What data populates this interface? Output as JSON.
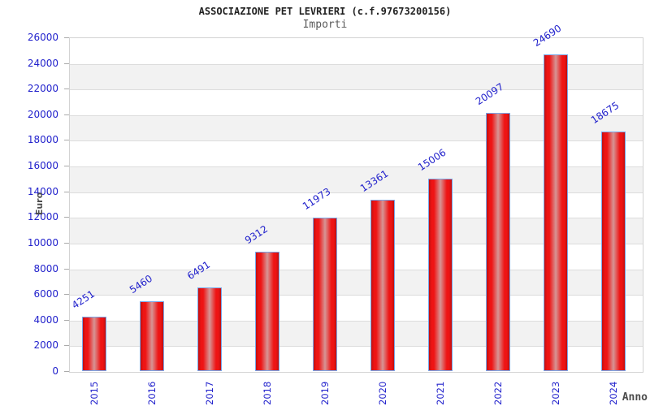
{
  "header": {
    "title": "ASSOCIAZIONE PET LEVRIERI (c.f.97673200156)",
    "subtitle": "Importi"
  },
  "chart_data": {
    "type": "bar",
    "title": "ASSOCIAZIONE PET LEVRIERI (c.f.97673200156)",
    "subtitle": "Importi",
    "categories": [
      "2015",
      "2016",
      "2017",
      "2018",
      "2019",
      "2020",
      "2021",
      "2022",
      "2023",
      "2024"
    ],
    "values": [
      4251,
      5460,
      6491,
      9312,
      11973,
      13361,
      15006,
      20097,
      24690,
      18675
    ],
    "xlabel": "Anno",
    "ylabel": "Euro",
    "ylim": [
      0,
      26000
    ],
    "ytick_step": 2000,
    "grid": true,
    "legend": "none",
    "banded_background": true,
    "colors": {
      "bar_edge": "#c00f0f",
      "bar_bright": "#ee1414",
      "bar_mid": "#d69595",
      "bar_border": "#78a8ea",
      "tick_label": "#2222cc",
      "value_label": "#2222cc",
      "axis_label": "#4d4d4d",
      "band_gray": "#f2f2f2",
      "band_white": "#ffffff",
      "grid_line": "#dcdcdc",
      "plot_border": "#d3d3d3",
      "tick_mark": "#aaaaaa"
    }
  }
}
